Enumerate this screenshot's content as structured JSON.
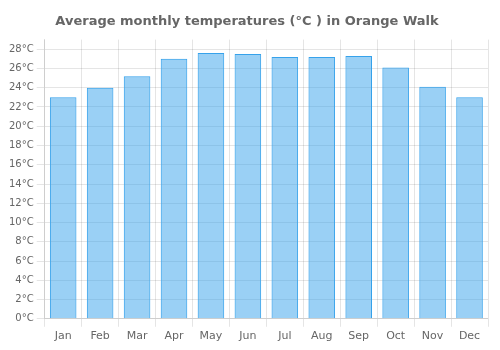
{
  "chart_data": {
    "type": "bar",
    "title": "Average monthly temperatures (°C ) in Orange Walk",
    "categories": [
      "Jan",
      "Feb",
      "Mar",
      "Apr",
      "May",
      "Jun",
      "Jul",
      "Aug",
      "Sep",
      "Oct",
      "Nov",
      "Dec"
    ],
    "values": [
      23.0,
      24.0,
      25.2,
      27.0,
      27.6,
      27.5,
      27.2,
      27.2,
      27.3,
      26.1,
      24.1,
      23.0
    ],
    "ylim": [
      0,
      29
    ],
    "yticks": [
      {
        "value": 0,
        "label": "0°C"
      },
      {
        "value": 2,
        "label": "2°C"
      },
      {
        "value": 4,
        "label": "4°C"
      },
      {
        "value": 6,
        "label": "6°C"
      },
      {
        "value": 8,
        "label": "8°C"
      },
      {
        "value": 10,
        "label": "10°C"
      },
      {
        "value": 12,
        "label": "12°C"
      },
      {
        "value": 14,
        "label": "14°C"
      },
      {
        "value": 16,
        "label": "16°C"
      },
      {
        "value": 18,
        "label": "18°C"
      },
      {
        "value": 20,
        "label": "20°C"
      },
      {
        "value": 22,
        "label": "22°C"
      },
      {
        "value": 24,
        "label": "24°C"
      },
      {
        "value": 26,
        "label": "26°C"
      },
      {
        "value": 28,
        "label": "28°C"
      }
    ],
    "grid": true
  }
}
